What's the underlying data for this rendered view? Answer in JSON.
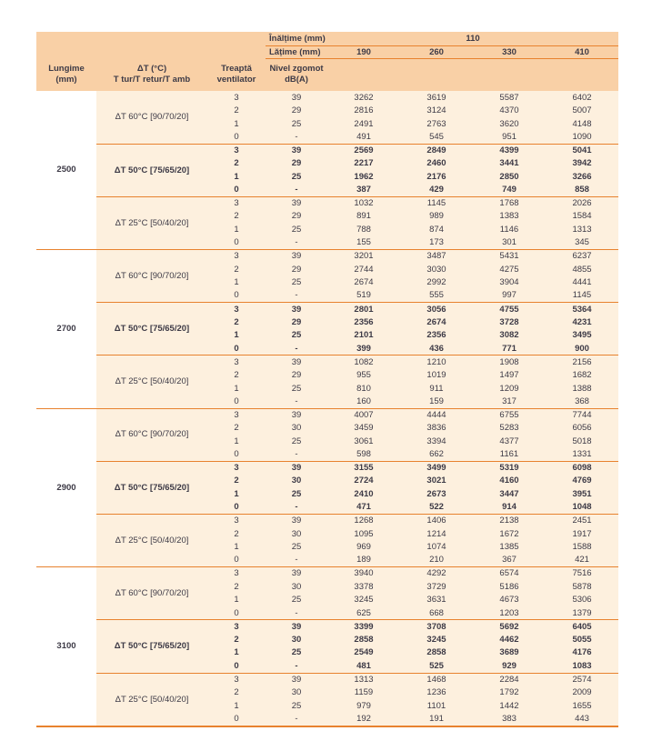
{
  "colors": {
    "orange_line": "#e8822e",
    "header_bg": "#f9d0a6",
    "body_bg": "#fdf0de",
    "text": "#3d3a46"
  },
  "table": {
    "header": {
      "inaltime_label": "Înălțime (mm)",
      "inaltime_value": "110",
      "latime_label": "Lățime (mm)",
      "latime_values": [
        "190",
        "260",
        "330",
        "410"
      ],
      "col_lungime": [
        "Lungime",
        "(mm)"
      ],
      "col_delta": [
        "ΔT (°C)",
        "T tur/T retur/T amb"
      ],
      "col_treapta": [
        "Treaptă",
        "ventilator"
      ],
      "col_zgomot": [
        "Nivel zgomot",
        "dB(A)"
      ]
    },
    "sections": [
      {
        "lungime": "2500",
        "groups": [
          {
            "label": "ΔT 60°C [90/70/20]",
            "bold": false,
            "rows": [
              {
                "treapta": "3",
                "zgomot": "39",
                "values": [
                  3262,
                  3619,
                  5587,
                  6402
                ]
              },
              {
                "treapta": "2",
                "zgomot": "29",
                "values": [
                  2816,
                  3124,
                  4370,
                  5007
                ]
              },
              {
                "treapta": "1",
                "zgomot": "25",
                "values": [
                  2491,
                  2763,
                  3620,
                  4148
                ]
              },
              {
                "treapta": "0",
                "zgomot": "-",
                "values": [
                  491,
                  545,
                  951,
                  1090
                ]
              }
            ]
          },
          {
            "label": "ΔT 50°C [75/65/20]",
            "bold": true,
            "rows": [
              {
                "treapta": "3",
                "zgomot": "39",
                "values": [
                  2569,
                  2849,
                  4399,
                  5041
                ]
              },
              {
                "treapta": "2",
                "zgomot": "29",
                "values": [
                  2217,
                  2460,
                  3441,
                  3942
                ]
              },
              {
                "treapta": "1",
                "zgomot": "25",
                "values": [
                  1962,
                  2176,
                  2850,
                  3266
                ]
              },
              {
                "treapta": "0",
                "zgomot": "-",
                "values": [
                  387,
                  429,
                  749,
                  858
                ]
              }
            ]
          },
          {
            "label": "ΔT 25°C [50/40/20]",
            "bold": false,
            "rows": [
              {
                "treapta": "3",
                "zgomot": "39",
                "values": [
                  1032,
                  1145,
                  1768,
                  2026
                ]
              },
              {
                "treapta": "2",
                "zgomot": "29",
                "values": [
                  891,
                  989,
                  1383,
                  1584
                ]
              },
              {
                "treapta": "1",
                "zgomot": "25",
                "values": [
                  788,
                  874,
                  1146,
                  1313
                ]
              },
              {
                "treapta": "0",
                "zgomot": "-",
                "values": [
                  155,
                  173,
                  301,
                  345
                ]
              }
            ]
          }
        ]
      },
      {
        "lungime": "2700",
        "groups": [
          {
            "label": "ΔT 60°C [90/70/20]",
            "bold": false,
            "rows": [
              {
                "treapta": "3",
                "zgomot": "39",
                "values": [
                  3201,
                  3487,
                  5431,
                  6237
                ]
              },
              {
                "treapta": "2",
                "zgomot": "29",
                "values": [
                  2744,
                  3030,
                  4275,
                  4855
                ]
              },
              {
                "treapta": "1",
                "zgomot": "25",
                "values": [
                  2674,
                  2992,
                  3904,
                  4441
                ]
              },
              {
                "treapta": "0",
                "zgomot": "-",
                "values": [
                  519,
                  555,
                  997,
                  1145
                ]
              }
            ]
          },
          {
            "label": "ΔT 50°C [75/65/20]",
            "bold": true,
            "rows": [
              {
                "treapta": "3",
                "zgomot": "39",
                "values": [
                  2801,
                  3056,
                  4755,
                  5364
                ]
              },
              {
                "treapta": "2",
                "zgomot": "29",
                "values": [
                  2356,
                  2674,
                  3728,
                  4231
                ]
              },
              {
                "treapta": "1",
                "zgomot": "25",
                "values": [
                  2101,
                  2356,
                  3082,
                  3495
                ]
              },
              {
                "treapta": "0",
                "zgomot": "-",
                "values": [
                  399,
                  436,
                  771,
                  900
                ]
              }
            ]
          },
          {
            "label": "ΔT 25°C [50/40/20]",
            "bold": false,
            "rows": [
              {
                "treapta": "3",
                "zgomot": "39",
                "values": [
                  1082,
                  1210,
                  1908,
                  2156
                ]
              },
              {
                "treapta": "2",
                "zgomot": "29",
                "values": [
                  955,
                  1019,
                  1497,
                  1682
                ]
              },
              {
                "treapta": "1",
                "zgomot": "25",
                "values": [
                  810,
                  911,
                  1209,
                  1388
                ]
              },
              {
                "treapta": "0",
                "zgomot": "-",
                "values": [
                  160,
                  159,
                  317,
                  368
                ]
              }
            ]
          }
        ]
      },
      {
        "lungime": "2900",
        "groups": [
          {
            "label": "ΔT 60°C [90/70/20]",
            "bold": false,
            "rows": [
              {
                "treapta": "3",
                "zgomot": "39",
                "values": [
                  4007,
                  4444,
                  6755,
                  7744
                ]
              },
              {
                "treapta": "2",
                "zgomot": "30",
                "values": [
                  3459,
                  3836,
                  5283,
                  6056
                ]
              },
              {
                "treapta": "1",
                "zgomot": "25",
                "values": [
                  3061,
                  3394,
                  4377,
                  5018
                ]
              },
              {
                "treapta": "0",
                "zgomot": "-",
                "values": [
                  598,
                  662,
                  1161,
                  1331
                ]
              }
            ]
          },
          {
            "label": "ΔT 50°C [75/65/20]",
            "bold": true,
            "rows": [
              {
                "treapta": "3",
                "zgomot": "39",
                "values": [
                  3155,
                  3499,
                  5319,
                  6098
                ]
              },
              {
                "treapta": "2",
                "zgomot": "30",
                "values": [
                  2724,
                  3021,
                  4160,
                  4769
                ]
              },
              {
                "treapta": "1",
                "zgomot": "25",
                "values": [
                  2410,
                  2673,
                  3447,
                  3951
                ]
              },
              {
                "treapta": "0",
                "zgomot": "-",
                "values": [
                  471,
                  522,
                  914,
                  1048
                ]
              }
            ]
          },
          {
            "label": "ΔT 25°C [50/40/20]",
            "bold": false,
            "rows": [
              {
                "treapta": "3",
                "zgomot": "39",
                "values": [
                  1268,
                  1406,
                  2138,
                  2451
                ]
              },
              {
                "treapta": "2",
                "zgomot": "30",
                "values": [
                  1095,
                  1214,
                  1672,
                  1917
                ]
              },
              {
                "treapta": "1",
                "zgomot": "25",
                "values": [
                  969,
                  1074,
                  1385,
                  1588
                ]
              },
              {
                "treapta": "0",
                "zgomot": "-",
                "values": [
                  189,
                  210,
                  367,
                  421
                ]
              }
            ]
          }
        ]
      },
      {
        "lungime": "3100",
        "groups": [
          {
            "label": "ΔT 60°C [90/70/20]",
            "bold": false,
            "rows": [
              {
                "treapta": "3",
                "zgomot": "39",
                "values": [
                  3940,
                  4292,
                  6574,
                  7516
                ]
              },
              {
                "treapta": "2",
                "zgomot": "30",
                "values": [
                  3378,
                  3729,
                  5186,
                  5878
                ]
              },
              {
                "treapta": "1",
                "zgomot": "25",
                "values": [
                  3245,
                  3631,
                  4673,
                  5306
                ]
              },
              {
                "treapta": "0",
                "zgomot": "-",
                "values": [
                  625,
                  668,
                  1203,
                  1379
                ]
              }
            ]
          },
          {
            "label": "ΔT 50°C [75/65/20]",
            "bold": true,
            "rows": [
              {
                "treapta": "3",
                "zgomot": "39",
                "values": [
                  3399,
                  3708,
                  5692,
                  6405
                ]
              },
              {
                "treapta": "2",
                "zgomot": "30",
                "values": [
                  2858,
                  3245,
                  4462,
                  5055
                ]
              },
              {
                "treapta": "1",
                "zgomot": "25",
                "values": [
                  2549,
                  2858,
                  3689,
                  4176
                ]
              },
              {
                "treapta": "0",
                "zgomot": "-",
                "values": [
                  481,
                  525,
                  929,
                  1083
                ]
              }
            ]
          },
          {
            "label": "ΔT 25°C [50/40/20]",
            "bold": false,
            "rows": [
              {
                "treapta": "3",
                "zgomot": "39",
                "values": [
                  1313,
                  1468,
                  2284,
                  2574
                ]
              },
              {
                "treapta": "2",
                "zgomot": "30",
                "values": [
                  1159,
                  1236,
                  1792,
                  2009
                ]
              },
              {
                "treapta": "1",
                "zgomot": "25",
                "values": [
                  979,
                  1101,
                  1442,
                  1655
                ]
              },
              {
                "treapta": "0",
                "zgomot": "-",
                "values": [
                  192,
                  191,
                  383,
                  443
                ]
              }
            ]
          }
        ]
      }
    ]
  }
}
